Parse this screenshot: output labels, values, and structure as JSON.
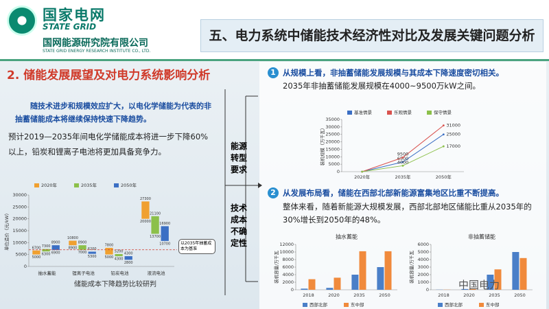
{
  "header": {
    "logo_cn": "国家电网",
    "logo_en": "STATE GRID",
    "institute_cn": "国网能源研究院有限公司",
    "institute_en": "STATE GRID ENERGY RESEARCH INSTITUTE CO., LTD.",
    "title": "五、电力系统中储能技术经济性对比及发展关键问题分析"
  },
  "left": {
    "section": "2. 储能发展展望及对电力系统影响分析",
    "lead": "随技术进步和规模效应扩大，以电化学储能为代表的非抽蓄储能成本将继续保持快速下降趋势。",
    "body": "预计2019—2035年间电化学储能成本将进一步下降60%以上，铅炭和锂离子电池将更加具备竞争力。"
  },
  "middle": {
    "label1": "能源转型要求",
    "label2": "技术成本不确定性"
  },
  "right": {
    "items": [
      {
        "number": "1",
        "heading": "从规模上看，非抽蓄储能发展规模与其成本下降速度密切相关。",
        "text": "2035年非抽蓄储能发展规模在4000~9500万kW之间。"
      },
      {
        "number": "2",
        "heading": "从发展布局看，储能在西部北部新能源富集地区比重不断提高。",
        "text": "整体来看，随着新能源大规模发展，西部北部地区储能比重从2035年的30%增长到2050年的48%。"
      }
    ]
  },
  "watermark": "中国电力",
  "chart_data": [
    {
      "type": "floating_bar",
      "title": "储能成本下降趋势比较研判",
      "ylabel": "单位造价（元/kW）",
      "categories": [
        "抽水蓄能",
        "锂离子电池",
        "铅炭电池",
        "液流电池"
      ],
      "series": [
        {
          "name": "2020年",
          "color": "#f0a030",
          "low": [
            5000,
            8900,
            5000,
            20000
          ],
          "high": [
            6700,
            10800,
            7800,
            27300
          ]
        },
        {
          "name": "2035年",
          "color": "#8cc04a",
          "low": [
            6300,
            7000,
            4300,
            13700
          ],
          "high": [
            7300,
            8900,
            5200,
            21100
          ]
        },
        {
          "name": "2050年",
          "color": "#3b6fc4",
          "low": [
            6900,
            5300,
            2800,
            10700
          ],
          "high": [
            8900,
            6200,
            4300,
            16900
          ]
        }
      ],
      "reference_line": 7000,
      "annotation": "以2035年抽蓄成本为基准",
      "ylim": [
        0,
        30000
      ],
      "yticks": [
        0,
        5000,
        10000,
        15000,
        20000,
        25000,
        30000
      ],
      "grid": false
    },
    {
      "type": "line",
      "ylabel": "装机规模（万千瓦）",
      "categories": [
        "2020年",
        "2035年",
        "2050年"
      ],
      "series": [
        {
          "name": "基准情景",
          "color": "#3b6fc4",
          "values": [
            0,
            6500,
            25000
          ]
        },
        {
          "name": "乐观情景",
          "color": "#d9534f",
          "values": [
            0,
            9500,
            31000
          ]
        },
        {
          "name": "保守情景",
          "color": "#8cc04a",
          "values": [
            0,
            4000,
            17000
          ]
        }
      ],
      "ylim": [
        0,
        35000
      ],
      "yticks": [
        0,
        5000,
        10000,
        15000,
        20000,
        25000,
        30000,
        35000
      ],
      "grid": false
    },
    {
      "type": "bar",
      "title": "抽水蓄能",
      "ylabel": "装机容量/万千瓦",
      "categories": [
        "2018",
        "2020",
        "2035",
        "2050"
      ],
      "series": [
        {
          "name": "西部北部",
          "color": "#4a7fc8",
          "values": [
            300,
            500,
            4000,
            6000
          ]
        },
        {
          "name": "东中部",
          "color": "#f08a3c",
          "values": [
            2800,
            3200,
            10200,
            10200
          ]
        }
      ],
      "ylim": [
        0,
        12000
      ],
      "yticks": [
        0,
        2000,
        4000,
        6000,
        8000,
        10000,
        12000
      ],
      "grid": false
    },
    {
      "type": "bar",
      "title": "非抽蓄储能",
      "ylabel": "装机容量/万千瓦",
      "categories": [
        "2018",
        "2020",
        "2035",
        "2050"
      ],
      "series": [
        {
          "name": "西部北部",
          "color": "#4a7fc8",
          "values": [
            20,
            100,
            2000,
            5000
          ]
        },
        {
          "name": "东中部",
          "color": "#f08a3c",
          "values": [
            20,
            100,
            2700,
            4200
          ]
        }
      ],
      "ylim": [
        0,
        6000
      ],
      "yticks": [
        0,
        1000,
        2000,
        3000,
        4000,
        5000,
        6000
      ],
      "grid": false
    }
  ]
}
